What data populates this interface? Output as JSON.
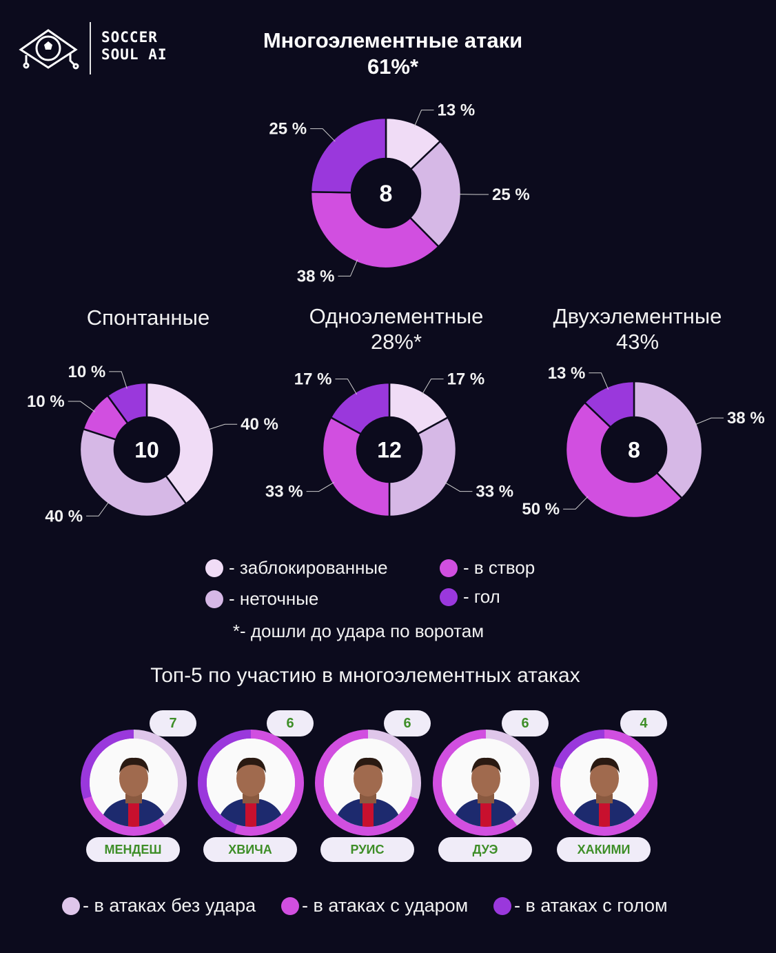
{
  "brand": {
    "line1": "SOCCER",
    "line2": "SOUL AI"
  },
  "colors": {
    "blocked": "#f0dcf6",
    "inaccurate": "#d6b8e6",
    "on_target": "#d14fe0",
    "goal": "#9a38dc"
  },
  "header": {
    "title": "Многоэлементные атаки",
    "subtitle": "61%*"
  },
  "chart_data": [
    {
      "type": "donut",
      "title": "Многоэлементные атаки",
      "subtitle": "61%*",
      "center": "8",
      "labels": [
        "заблокированные",
        "неточные",
        "в створ",
        "гол"
      ],
      "values": [
        13,
        25,
        38,
        25
      ],
      "value_labels": [
        "13 %",
        "25 %",
        "38 %",
        "25 %"
      ]
    },
    {
      "type": "donut",
      "title": "Спонтанные",
      "subtitle": "",
      "center": "10",
      "labels": [
        "заблокированные",
        "неточные",
        "в створ",
        "гол"
      ],
      "values": [
        40,
        40,
        10,
        10
      ],
      "value_labels": [
        "40 %",
        "40 %",
        "10 %",
        "10 %"
      ]
    },
    {
      "type": "donut",
      "title": "Одноэлементные",
      "subtitle": "28%*",
      "center": "12",
      "labels": [
        "заблокированные",
        "неточные",
        "в створ",
        "гол"
      ],
      "values": [
        17,
        33,
        33,
        17
      ],
      "value_labels": [
        "17 %",
        "33 %",
        "33 %",
        "17 %"
      ]
    },
    {
      "type": "donut",
      "title": "Двухэлементные",
      "subtitle": "43%",
      "center": "8",
      "labels": [
        "неточные",
        "в створ",
        "гол"
      ],
      "values": [
        38,
        50,
        13
      ],
      "value_labels": [
        "38 %",
        "50 %",
        "13 %"
      ]
    }
  ],
  "legend": {
    "blocked": "- заблокированные",
    "inaccurate": "- неточные",
    "on_target": "- в створ",
    "goal": "- гол",
    "note": "*- дошли до удара по воротам"
  },
  "top5": {
    "title": "Топ-5 по участию в многоэлементных атаках",
    "players": [
      {
        "name": "МЕНДЕШ",
        "count": "7"
      },
      {
        "name": "ХВИЧА",
        "count": "6"
      },
      {
        "name": "РУИС",
        "count": "6"
      },
      {
        "name": "ДУЭ",
        "count": "6"
      },
      {
        "name": "ХАКИМИ",
        "count": "4"
      }
    ],
    "legend": {
      "no_shot": "- в атаках без удара",
      "with_shot": "- в атаках с ударом",
      "with_goal": "- в атаках с голом"
    }
  }
}
